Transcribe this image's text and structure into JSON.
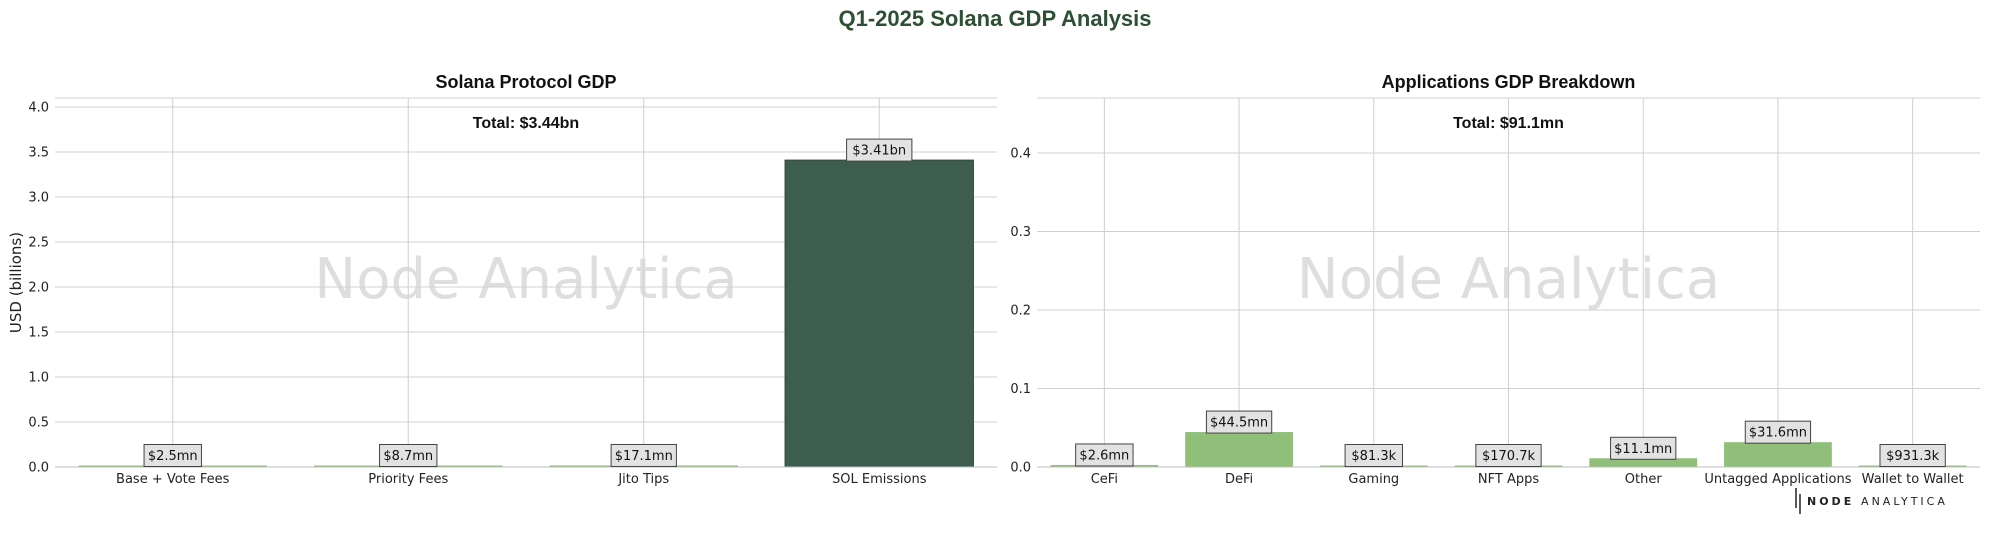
{
  "title": "Q1-2025 Solana GDP Analysis",
  "colors": {
    "title": "#2d4f33",
    "dark_bar": "#3d5e4e",
    "light_bar": "#8fbf78",
    "grid": "#d0d0d0",
    "label_box": "#e2e2e2"
  },
  "watermark": "Node Analytica",
  "logo": {
    "bold": "NODE",
    "light": "ANALYTICA"
  },
  "chart_data": [
    {
      "type": "bar",
      "title": "Solana Protocol GDP",
      "total_label": "Total: $3.44bn",
      "ylabel": "USD (billions)",
      "ylim": [
        0,
        4.1
      ],
      "yticks": [
        0.0,
        0.5,
        1.0,
        1.5,
        2.0,
        2.5,
        3.0,
        3.5,
        4.0
      ],
      "ytick_labels": [
        "0.0",
        "0.5",
        "1.0",
        "1.5",
        "2.0",
        "2.5",
        "3.0",
        "3.5",
        "4.0"
      ],
      "categories": [
        "Base + Vote Fees",
        "Priority Fees",
        "Jito Tips",
        "SOL Emissions"
      ],
      "values": [
        0.0025,
        0.0087,
        0.0171,
        3.41
      ],
      "bar_colors": [
        "#8fbf78",
        "#8fbf78",
        "#8fbf78",
        "#3d5e4e"
      ],
      "data_labels": [
        "$2.5mn",
        "$8.7mn",
        "$17.1mn",
        "$3.41bn"
      ],
      "grid": true
    },
    {
      "type": "bar",
      "title": "Applications GDP Breakdown",
      "total_label": "Total: $91.1mn",
      "ylabel": "",
      "ylim": [
        0,
        0.47
      ],
      "yticks": [
        0.0,
        0.1,
        0.2,
        0.3,
        0.4
      ],
      "ytick_labels": [
        "0.0",
        "0.1",
        "0.2",
        "0.3",
        "0.4"
      ],
      "categories": [
        "CeFi",
        "DeFi",
        "Gaming",
        "NFT Apps",
        "Other",
        "Untagged Applications",
        "Wallet to Wallet"
      ],
      "values": [
        0.0026,
        0.0445,
        8.13e-05,
        0.0001707,
        0.0111,
        0.0316,
        0.0009313
      ],
      "bar_colors": [
        "#8fbf78",
        "#8fbf78",
        "#8fbf78",
        "#8fbf78",
        "#8fbf78",
        "#8fbf78",
        "#8fbf78"
      ],
      "data_labels": [
        "$2.6mn",
        "$44.5mn",
        "$81.3k",
        "$170.7k",
        "$11.1mn",
        "$31.6mn",
        "$931.3k"
      ],
      "grid": true
    }
  ]
}
